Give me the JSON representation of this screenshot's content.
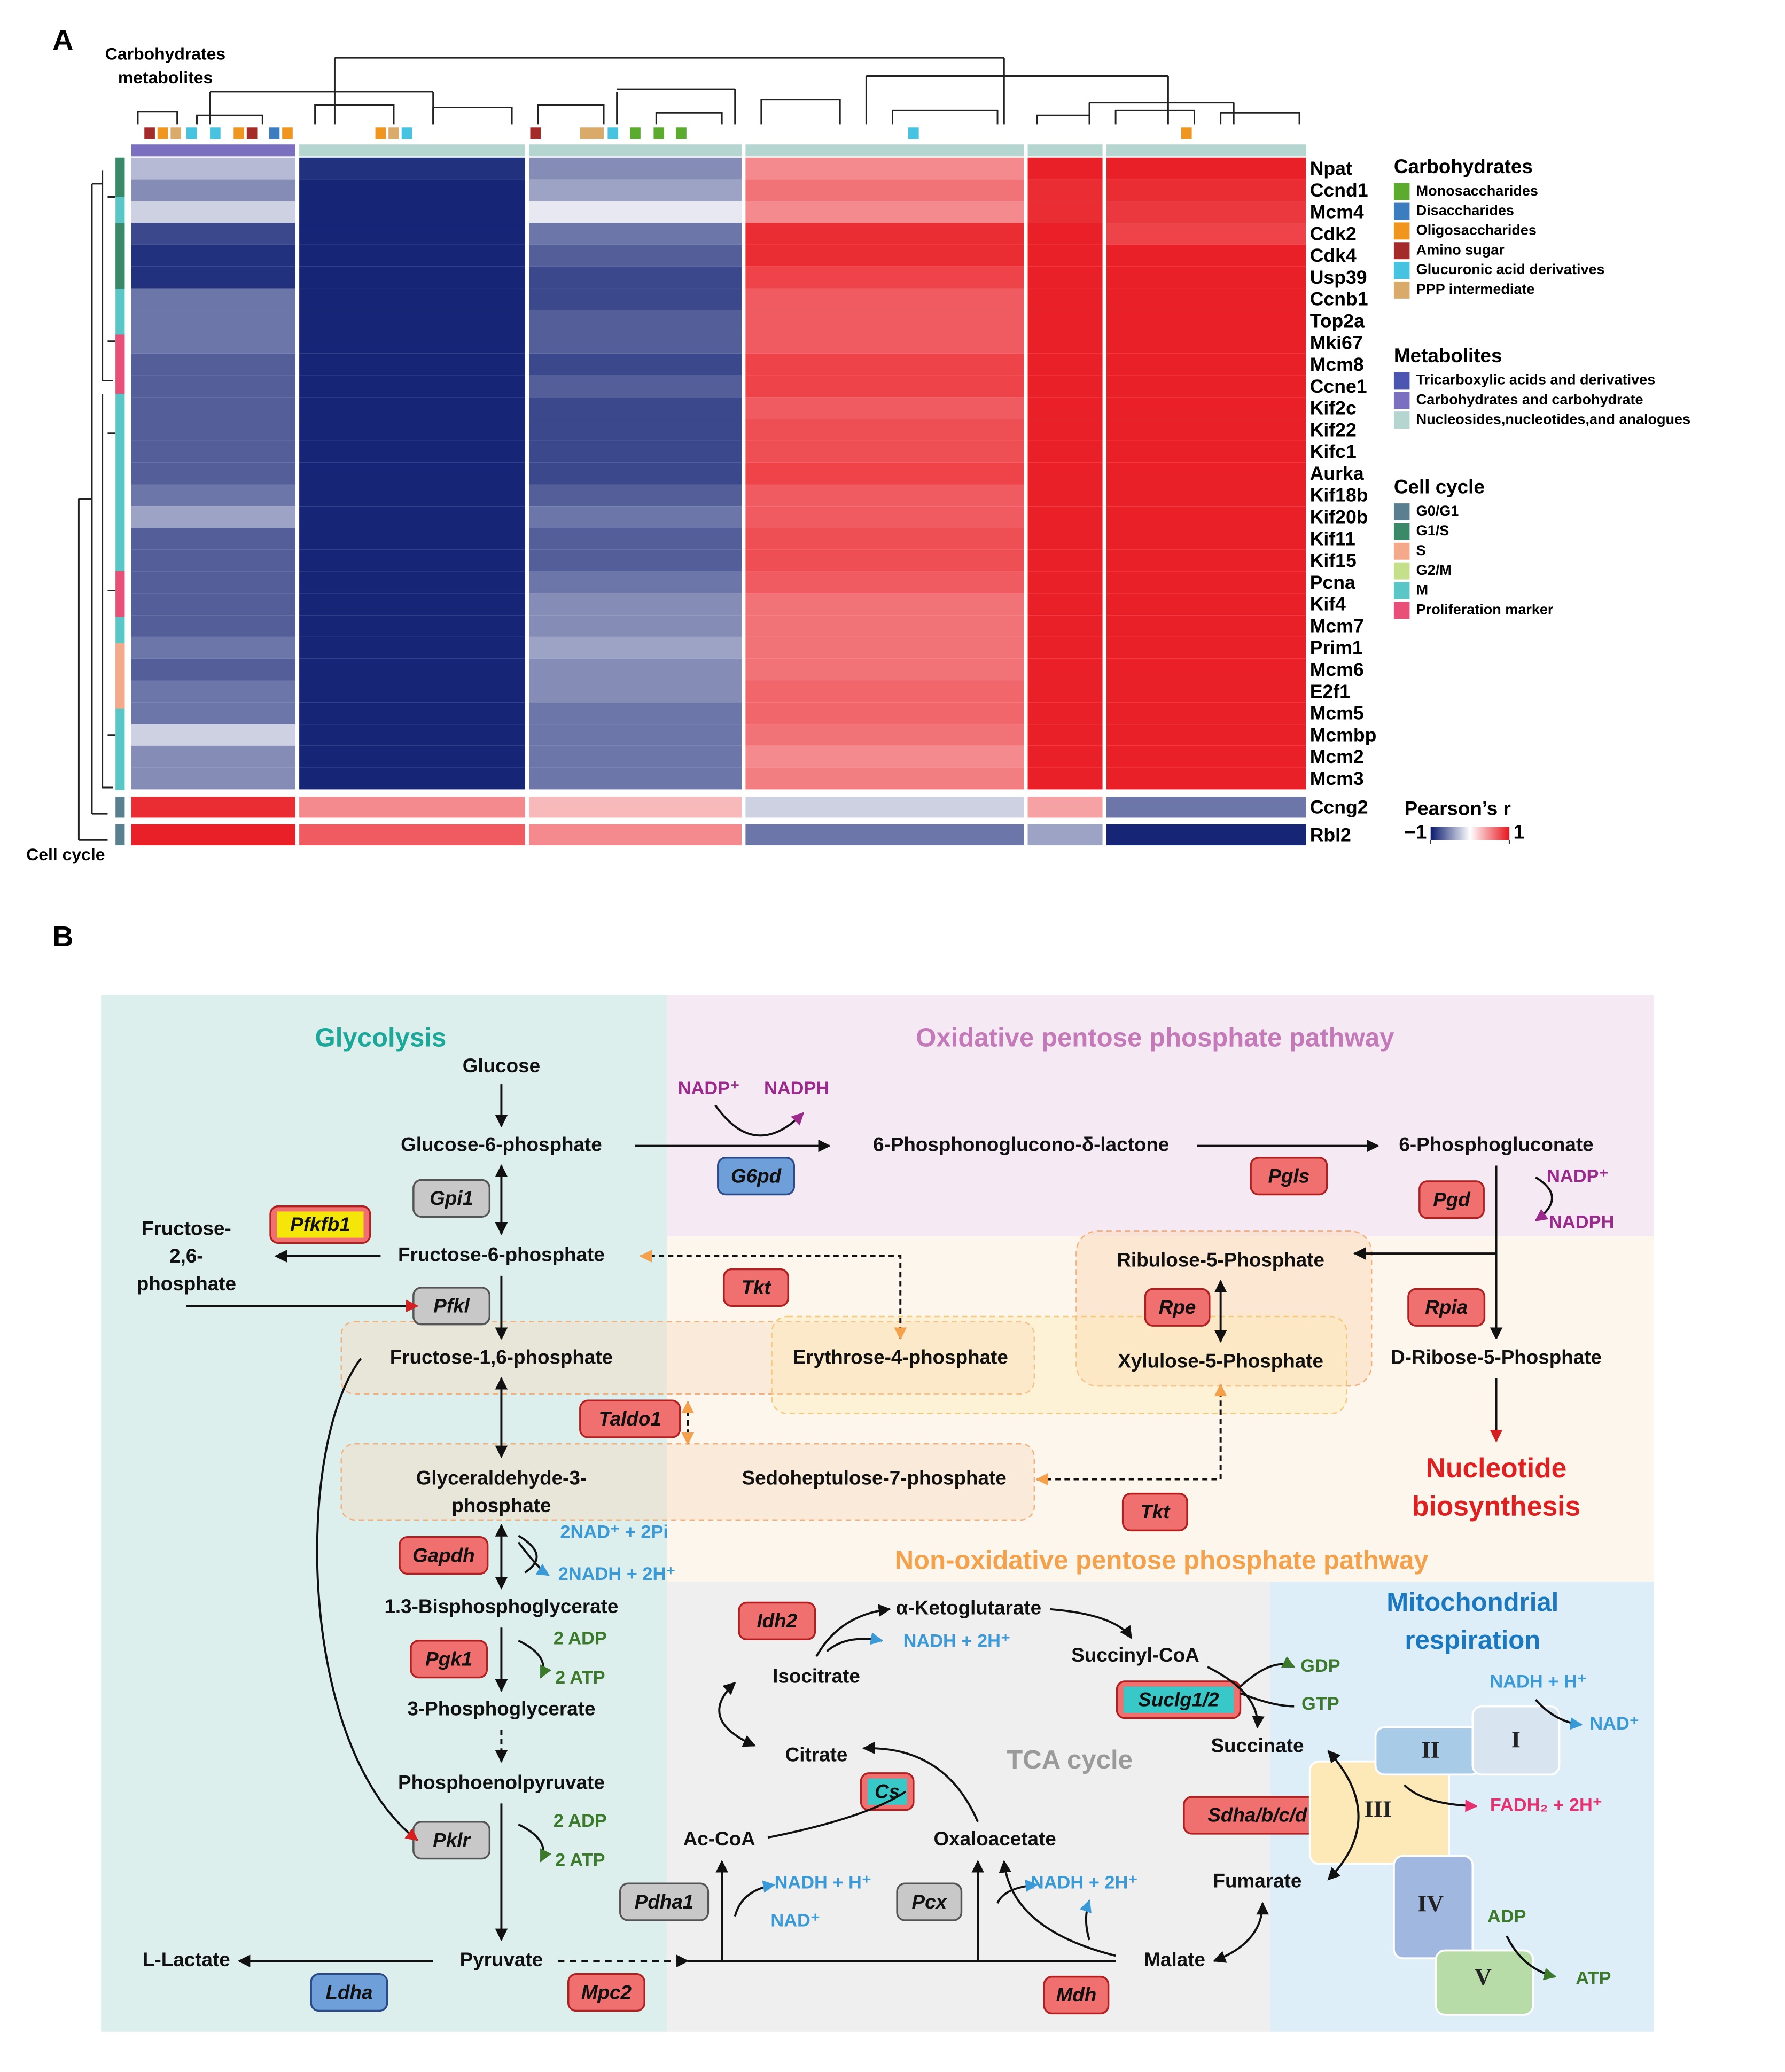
{
  "panels": [
    "A",
    "B"
  ],
  "heatmap": {
    "side_title": [
      "Carbohydrates",
      "metabolites"
    ],
    "left_title": "Cell cycle",
    "rows": [
      {
        "gene": "Npat",
        "values": [
          -0.3,
          -0.9,
          -0.5,
          0.5,
          0.95,
          0.95
        ]
      },
      {
        "gene": "Ccnd1",
        "values": [
          -0.5,
          -0.95,
          -0.4,
          0.6,
          0.9,
          0.9
        ]
      },
      {
        "gene": "Mcm4",
        "values": [
          -0.2,
          -0.95,
          -0.1,
          0.5,
          0.9,
          0.85
        ]
      },
      {
        "gene": "Cdk2",
        "values": [
          -0.8,
          -0.95,
          -0.6,
          0.9,
          0.95,
          0.8
        ]
      },
      {
        "gene": "Cdk4",
        "values": [
          -0.9,
          -0.95,
          -0.7,
          0.9,
          0.95,
          0.95
        ]
      },
      {
        "gene": "Usp39",
        "values": [
          -0.9,
          -0.95,
          -0.8,
          0.8,
          0.95,
          0.95
        ]
      },
      {
        "gene": "Ccnb1",
        "values": [
          -0.6,
          -0.95,
          -0.8,
          0.7,
          0.95,
          0.95
        ]
      },
      {
        "gene": "Top2a",
        "values": [
          -0.6,
          -0.95,
          -0.7,
          0.7,
          0.95,
          0.95
        ]
      },
      {
        "gene": "Mki67",
        "values": [
          -0.6,
          -0.95,
          -0.7,
          0.7,
          0.95,
          0.95
        ]
      },
      {
        "gene": "Mcm8",
        "values": [
          -0.7,
          -0.95,
          -0.8,
          0.8,
          0.95,
          0.95
        ]
      },
      {
        "gene": "Ccne1",
        "values": [
          -0.7,
          -0.95,
          -0.7,
          0.8,
          0.95,
          0.95
        ]
      },
      {
        "gene": "Kif2c",
        "values": [
          -0.7,
          -0.95,
          -0.8,
          0.7,
          0.95,
          0.95
        ]
      },
      {
        "gene": "Kif22",
        "values": [
          -0.7,
          -0.95,
          -0.8,
          0.75,
          0.95,
          0.95
        ]
      },
      {
        "gene": "Kifc1",
        "values": [
          -0.7,
          -0.95,
          -0.8,
          0.75,
          0.95,
          0.95
        ]
      },
      {
        "gene": "Aurka",
        "values": [
          -0.7,
          -0.95,
          -0.8,
          0.8,
          0.95,
          0.95
        ]
      },
      {
        "gene": "Kif18b",
        "values": [
          -0.6,
          -0.95,
          -0.7,
          0.7,
          0.95,
          0.95
        ]
      },
      {
        "gene": "Kif20b",
        "values": [
          -0.4,
          -0.95,
          -0.6,
          0.7,
          0.95,
          0.95
        ]
      },
      {
        "gene": "Kif11",
        "values": [
          -0.7,
          -0.95,
          -0.7,
          0.75,
          0.95,
          0.95
        ]
      },
      {
        "gene": "Kif15",
        "values": [
          -0.7,
          -0.95,
          -0.7,
          0.75,
          0.95,
          0.95
        ]
      },
      {
        "gene": "Pcna",
        "values": [
          -0.7,
          -0.95,
          -0.6,
          0.7,
          0.95,
          0.95
        ]
      },
      {
        "gene": "Kif4",
        "values": [
          -0.7,
          -0.95,
          -0.5,
          0.6,
          0.95,
          0.95
        ]
      },
      {
        "gene": "Mcm7",
        "values": [
          -0.7,
          -0.95,
          -0.5,
          0.6,
          0.95,
          0.95
        ]
      },
      {
        "gene": "Prim1",
        "values": [
          -0.6,
          -0.95,
          -0.4,
          0.6,
          0.95,
          0.95
        ]
      },
      {
        "gene": "Mcm6",
        "values": [
          -0.7,
          -0.95,
          -0.5,
          0.6,
          0.95,
          0.95
        ]
      },
      {
        "gene": "E2f1",
        "values": [
          -0.6,
          -0.95,
          -0.5,
          0.65,
          0.95,
          0.95
        ]
      },
      {
        "gene": "Mcm5",
        "values": [
          -0.6,
          -0.95,
          -0.6,
          0.65,
          0.95,
          0.95
        ]
      },
      {
        "gene": "Mcmbp",
        "values": [
          -0.2,
          -0.95,
          -0.6,
          0.6,
          0.95,
          0.95
        ]
      },
      {
        "gene": "Mcm2",
        "values": [
          -0.5,
          -0.95,
          -0.6,
          0.5,
          0.95,
          0.95
        ]
      },
      {
        "gene": "Mcm3",
        "values": [
          -0.5,
          -0.95,
          -0.6,
          0.55,
          0.95,
          0.95
        ]
      },
      {
        "gene": "Ccng2",
        "values": [
          0.9,
          0.5,
          0.3,
          -0.2,
          0.4,
          -0.6
        ]
      },
      {
        "gene": "Rbl2",
        "values": [
          0.95,
          0.7,
          0.5,
          -0.6,
          -0.4,
          -0.95
        ]
      }
    ],
    "legend_groups": [
      {
        "title": "Carbohydrates",
        "items": [
          {
            "label": "Monosaccharides",
            "color": "#5aab2e"
          },
          {
            "label": "Disaccharides",
            "color": "#3b7dbf"
          },
          {
            "label": "Oligosaccharides",
            "color": "#f0961e"
          },
          {
            "label": "Amino sugar",
            "color": "#a52a2a"
          },
          {
            "label": "Glucuronic acid derivatives",
            "color": "#45c3e0"
          },
          {
            "label": "PPP intermediate",
            "color": "#d9aa6a"
          }
        ]
      },
      {
        "title": "Metabolites",
        "items": [
          {
            "label": "Tricarboxylic acids and derivatives",
            "color": "#4a56b0"
          },
          {
            "label": "Carbohydrates and carbohydrate",
            "color": "#7b6fc0"
          },
          {
            "label": "Nucleosides,nucleotides,and analogues",
            "color": "#b5d6d0"
          }
        ]
      },
      {
        "title": "Cell cycle",
        "items": [
          {
            "label": "G0/G1",
            "color": "#5a7f8f"
          },
          {
            "label": "G1/S",
            "color": "#3a8a6a"
          },
          {
            "label": "S",
            "color": "#f4a98a"
          },
          {
            "label": "G2/M",
            "color": "#c5e08a"
          },
          {
            "label": "M",
            "color": "#5ac6c6"
          },
          {
            "label": "Proliferation marker",
            "color": "#e8507a"
          }
        ]
      }
    ],
    "colorbar": {
      "title": "Pearson’s r",
      "lim": [
        -1,
        1
      ],
      "ticks": [
        {
          "value": -1,
          "label": "−1"
        },
        1
      ],
      "colors": [
        "#0a1a6e",
        "#ffffff",
        "#e8141c"
      ]
    }
  },
  "pathway": {
    "regions": [
      {
        "lines": [
          "Glycolysis"
        ],
        "color": "#1aa89a"
      },
      {
        "lines": [
          "Oxidative  pentose  phosphate  pathway"
        ],
        "color": "#c47ab8"
      },
      {
        "lines": [
          "Non-oxidative  pentose  phosphate  pathway"
        ],
        "color": "#f5a04a"
      },
      {
        "lines": [
          "TCA cycle"
        ],
        "color": "#9a9a9a"
      },
      {
        "lines": [
          "Mitochondrial",
          "respiration"
        ],
        "color": "#1a78c0"
      },
      {
        "lines": [
          "Nucleotide",
          "biosynthesis"
        ],
        "color": "#e02020"
      }
    ],
    "metabolites": [
      {
        "lines": [
          "Glucose"
        ]
      },
      {
        "lines": [
          "Glucose-6-phosphate"
        ]
      },
      {
        "lines": [
          "Fructose-6-phosphate"
        ]
      },
      {
        "lines": [
          "Fructose-",
          "2,6-",
          "phosphate"
        ]
      },
      {
        "lines": [
          "Fructose-1,6-phosphate"
        ]
      },
      {
        "lines": [
          "Glyceraldehyde-3-",
          "phosphate"
        ]
      },
      {
        "lines": [
          "1.3-Bisphosphoglycerate"
        ]
      },
      {
        "lines": [
          "3-Phosphoglycerate"
        ]
      },
      {
        "lines": [
          "Phosphoenolpyruvate"
        ]
      },
      {
        "lines": [
          "Pyruvate"
        ]
      },
      {
        "lines": [
          "L-Lactate"
        ]
      },
      {
        "lines": [
          "6-Phosphonoglucono-δ-lactone"
        ]
      },
      {
        "lines": [
          "6-Phosphogluconate"
        ]
      },
      {
        "lines": [
          "Ribulose-5-Phosphate"
        ]
      },
      {
        "lines": [
          "Xylulose-5-Phosphate"
        ]
      },
      {
        "lines": [
          "D-Ribose-5-Phosphate"
        ]
      },
      {
        "lines": [
          "Erythrose-4-phosphate"
        ]
      },
      {
        "lines": [
          "Sedoheptulose-7-phosphate"
        ]
      },
      {
        "lines": [
          "α-Ketoglutarate"
        ]
      },
      {
        "lines": [
          "Succinyl-CoA"
        ]
      },
      {
        "lines": [
          "Isocitrate"
        ]
      },
      {
        "lines": [
          "Citrate"
        ]
      },
      {
        "lines": [
          "Succinate"
        ]
      },
      {
        "lines": [
          "Ac-CoA"
        ]
      },
      {
        "lines": [
          "Oxaloacetate"
        ]
      },
      {
        "lines": [
          "Fumarate"
        ]
      },
      {
        "lines": [
          "Malate"
        ]
      }
    ],
    "enzymes": [
      {
        "label": "Gpi1",
        "color": "#c8c8c8"
      },
      {
        "label": "Pfkfb1",
        "color": "#f07070",
        "highlight": "#f5e60a"
      },
      {
        "label": "Pfkl",
        "color": "#c8c8c8"
      },
      {
        "label": "Taldo1",
        "color": "#f07070"
      },
      {
        "label": "Tkt",
        "color": "#f07070"
      },
      {
        "label": "Tkt",
        "color": "#f07070"
      },
      {
        "label": "Gapdh",
        "color": "#f07070"
      },
      {
        "label": "Pgk1",
        "color": "#f07070"
      },
      {
        "label": "Pklr",
        "color": "#c8c8c8"
      },
      {
        "label": "Pdha1",
        "color": "#c8c8c8"
      },
      {
        "label": "Pcx",
        "color": "#c8c8c8"
      },
      {
        "label": "Ldha",
        "color": "#6f9fd8"
      },
      {
        "label": "Mpc2",
        "color": "#f07070"
      },
      {
        "label": "Mdh",
        "color": "#f07070"
      },
      {
        "label": "Cs",
        "color": "#f07070",
        "highlight": "#38c8c8"
      },
      {
        "label": "Idh2",
        "color": "#f07070"
      },
      {
        "label": "Suclg1/2",
        "color": "#f07070",
        "highlight": "#38c8c8"
      },
      {
        "label": "Sdha/b/c/d",
        "color": "#f07070"
      },
      {
        "label": "G6pd",
        "color": "#6f9fd8"
      },
      {
        "label": "Pgls",
        "color": "#f07070"
      },
      {
        "label": "Pgd",
        "color": "#f07070"
      },
      {
        "label": "Rpe",
        "color": "#f07070"
      },
      {
        "label": "Rpia",
        "color": "#f07070"
      }
    ],
    "cofactors": [
      {
        "label": "NADP⁺",
        "color": "#9c2a8c"
      },
      {
        "label": "NADPH",
        "color": "#9c2a8c"
      },
      {
        "label": "NADP⁺",
        "color": "#9c2a8c"
      },
      {
        "label": "NADPH",
        "color": "#9c2a8c"
      },
      {
        "label": "2NAD⁺ + 2Pi",
        "color": "#3a9ad8"
      },
      {
        "label": "2NADH + 2H⁺",
        "color": "#3a9ad8"
      },
      {
        "label": "2 ADP",
        "color": "#3a7a2a"
      },
      {
        "label": "2 ATP",
        "color": "#3a7a2a"
      },
      {
        "label": "2 ADP",
        "color": "#3a7a2a"
      },
      {
        "label": "2 ATP",
        "color": "#3a7a2a"
      },
      {
        "label": "NADH + 2H⁺",
        "color": "#3a9ad8"
      },
      {
        "label": "GDP",
        "color": "#3a7a2a"
      },
      {
        "label": "GTP",
        "color": "#3a7a2a"
      },
      {
        "label": "NADH + H⁺",
        "color": "#3a9ad8"
      },
      {
        "label": "NAD⁺",
        "color": "#3a9ad8"
      },
      {
        "label": "FADH₂ + 2H⁺",
        "color": "#e83070"
      },
      {
        "label": "NADH + H⁺",
        "color": "#3a9ad8"
      },
      {
        "label": "NAD⁺",
        "color": "#3a9ad8"
      },
      {
        "label": "NADH + 2H⁺",
        "color": "#3a9ad8"
      },
      {
        "label": "ADP",
        "color": "#3a7a2a"
      },
      {
        "label": "ATP",
        "color": "#3a7a2a"
      }
    ],
    "complexes": [
      {
        "label": "I",
        "color": "#d8e4f0"
      },
      {
        "label": "II",
        "color": "#a8cce8"
      },
      {
        "label": "III",
        "color": "#fde8b8"
      },
      {
        "label": "IV",
        "color": "#a0b8e0"
      },
      {
        "label": "V",
        "color": "#b8dca8"
      }
    ]
  }
}
